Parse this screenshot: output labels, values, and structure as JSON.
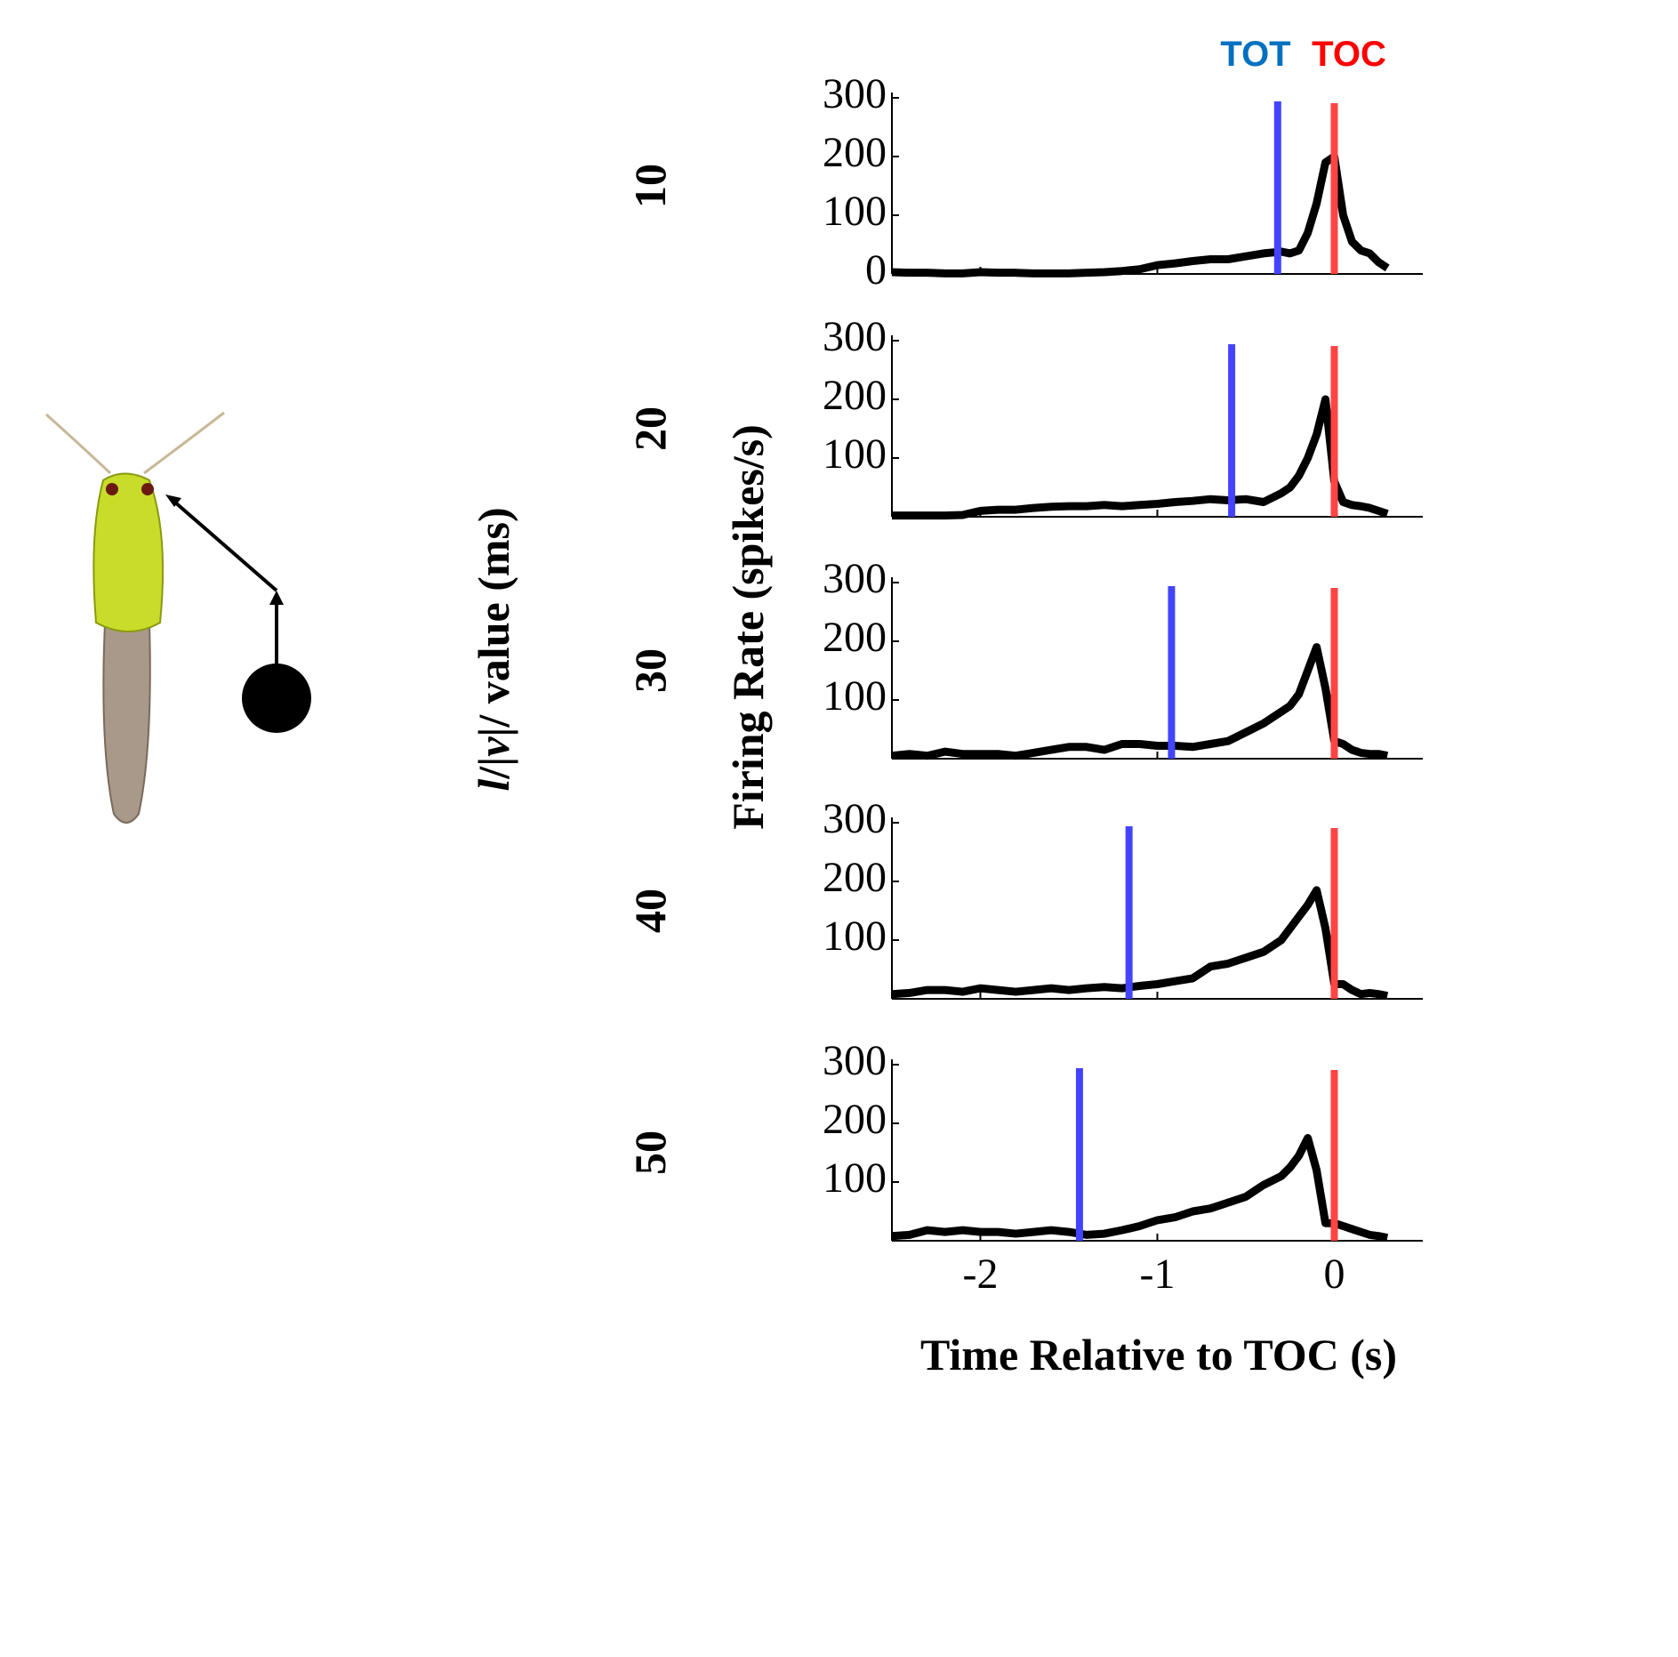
{
  "figure": {
    "left_label_parts": [
      "l",
      "/|",
      "v",
      "|/ value (ms)"
    ],
    "ylabel": "Firing Rate (spikes/s)",
    "xlabel": "Time Relative to TOC (s)",
    "markers": [
      {
        "name": "TOT",
        "color": "#0070c0",
        "line_color": "#4444ff"
      },
      {
        "name": "TOC",
        "color": "#ff0000",
        "line_color": "#ff4444"
      }
    ]
  },
  "chart_data": [
    {
      "type": "line",
      "label": "10",
      "color": "#000000",
      "xlim": [
        -2.5,
        0.5
      ],
      "ylim": [
        0,
        300
      ],
      "yticks": [
        0,
        100,
        200,
        300
      ],
      "xticks": [
        -2,
        -1,
        0
      ],
      "xtick_labels": false,
      "x": [
        -2.5,
        -2.4,
        -2.3,
        -2.2,
        -2.1,
        -2.0,
        -1.9,
        -1.8,
        -1.7,
        -1.6,
        -1.5,
        -1.4,
        -1.3,
        -1.2,
        -1.1,
        -1.0,
        -0.9,
        -0.8,
        -0.7,
        -0.6,
        -0.5,
        -0.4,
        -0.3,
        -0.25,
        -0.2,
        -0.15,
        -0.1,
        -0.05,
        0,
        0.05,
        0.1,
        0.15,
        0.2,
        0.25,
        0.3
      ],
      "values": [
        3,
        2,
        2,
        1,
        1,
        3,
        2,
        2,
        1,
        1,
        1,
        2,
        3,
        5,
        8,
        15,
        18,
        22,
        25,
        25,
        30,
        35,
        38,
        35,
        40,
        70,
        120,
        190,
        200,
        100,
        55,
        40,
        35,
        20,
        10
      ],
      "tot": -0.32,
      "toc": 0
    },
    {
      "type": "line",
      "label": "20",
      "color": "#000000",
      "xlim": [
        -2.5,
        0.5
      ],
      "ylim": [
        0,
        300
      ],
      "yticks": [
        100,
        200,
        300
      ],
      "xticks": [
        -2,
        -1,
        0
      ],
      "xtick_labels": false,
      "x": [
        -2.5,
        -2.4,
        -2.3,
        -2.2,
        -2.1,
        -2.0,
        -1.9,
        -1.8,
        -1.7,
        -1.6,
        -1.5,
        -1.4,
        -1.3,
        -1.2,
        -1.1,
        -1.0,
        -0.9,
        -0.8,
        -0.7,
        -0.6,
        -0.5,
        -0.4,
        -0.3,
        -0.25,
        -0.2,
        -0.15,
        -0.1,
        -0.05,
        0,
        0.05,
        0.1,
        0.15,
        0.2,
        0.25,
        0.3
      ],
      "values": [
        2,
        2,
        2,
        2,
        3,
        10,
        12,
        12,
        15,
        17,
        18,
        18,
        20,
        18,
        20,
        22,
        25,
        27,
        30,
        28,
        30,
        25,
        40,
        50,
        70,
        100,
        140,
        200,
        60,
        25,
        20,
        18,
        15,
        10,
        5
      ],
      "tot": -0.58,
      "toc": 0
    },
    {
      "type": "line",
      "label": "30",
      "color": "#000000",
      "xlim": [
        -2.5,
        0.5
      ],
      "ylim": [
        0,
        300
      ],
      "yticks": [
        100,
        200,
        300
      ],
      "xticks": [
        -2,
        -1,
        0
      ],
      "xtick_labels": false,
      "x": [
        -2.5,
        -2.4,
        -2.3,
        -2.2,
        -2.1,
        -2.0,
        -1.9,
        -1.8,
        -1.7,
        -1.6,
        -1.5,
        -1.4,
        -1.3,
        -1.2,
        -1.1,
        -1.0,
        -0.9,
        -0.8,
        -0.7,
        -0.6,
        -0.5,
        -0.4,
        -0.3,
        -0.25,
        -0.2,
        -0.15,
        -0.1,
        -0.05,
        0,
        0.05,
        0.1,
        0.15,
        0.2,
        0.25,
        0.3
      ],
      "values": [
        5,
        8,
        5,
        12,
        8,
        8,
        8,
        5,
        10,
        15,
        20,
        20,
        15,
        25,
        25,
        22,
        22,
        20,
        25,
        30,
        45,
        60,
        80,
        90,
        110,
        150,
        190,
        120,
        30,
        25,
        15,
        10,
        8,
        8,
        5
      ],
      "tot": -0.92,
      "toc": 0
    },
    {
      "type": "line",
      "label": "40",
      "color": "#000000",
      "xlim": [
        -2.5,
        0.5
      ],
      "ylim": [
        0,
        300
      ],
      "yticks": [
        100,
        200,
        300
      ],
      "xticks": [
        -2,
        -1,
        0
      ],
      "xtick_labels": false,
      "x": [
        -2.5,
        -2.4,
        -2.3,
        -2.2,
        -2.1,
        -2.0,
        -1.9,
        -1.8,
        -1.7,
        -1.6,
        -1.5,
        -1.4,
        -1.3,
        -1.2,
        -1.1,
        -1.0,
        -0.9,
        -0.8,
        -0.7,
        -0.6,
        -0.5,
        -0.4,
        -0.3,
        -0.25,
        -0.2,
        -0.15,
        -0.1,
        -0.05,
        0,
        0.05,
        0.1,
        0.15,
        0.2,
        0.25,
        0.3
      ],
      "values": [
        8,
        10,
        15,
        15,
        12,
        18,
        15,
        12,
        15,
        18,
        15,
        18,
        20,
        18,
        22,
        25,
        30,
        35,
        55,
        60,
        70,
        80,
        100,
        120,
        140,
        160,
        185,
        120,
        25,
        25,
        15,
        8,
        10,
        8,
        5
      ],
      "tot": -1.16,
      "toc": 0
    },
    {
      "type": "line",
      "label": "50",
      "color": "#000000",
      "xlim": [
        -2.5,
        0.5
      ],
      "ylim": [
        0,
        300
      ],
      "yticks": [
        100,
        200,
        300
      ],
      "xticks": [
        -2,
        -1,
        0
      ],
      "xtick_labels": true,
      "x": [
        -2.5,
        -2.4,
        -2.3,
        -2.2,
        -2.1,
        -2.0,
        -1.9,
        -1.8,
        -1.7,
        -1.6,
        -1.5,
        -1.4,
        -1.3,
        -1.2,
        -1.1,
        -1.0,
        -0.9,
        -0.8,
        -0.7,
        -0.6,
        -0.5,
        -0.4,
        -0.3,
        -0.25,
        -0.2,
        -0.15,
        -0.1,
        -0.05,
        0,
        0.05,
        0.1,
        0.15,
        0.2,
        0.25,
        0.3
      ],
      "values": [
        8,
        10,
        18,
        15,
        18,
        15,
        15,
        12,
        15,
        18,
        15,
        10,
        12,
        18,
        25,
        35,
        40,
        50,
        55,
        65,
        75,
        95,
        110,
        125,
        145,
        175,
        120,
        30,
        30,
        25,
        20,
        15,
        10,
        8,
        5
      ],
      "tot": -1.44,
      "toc": 0
    }
  ]
}
